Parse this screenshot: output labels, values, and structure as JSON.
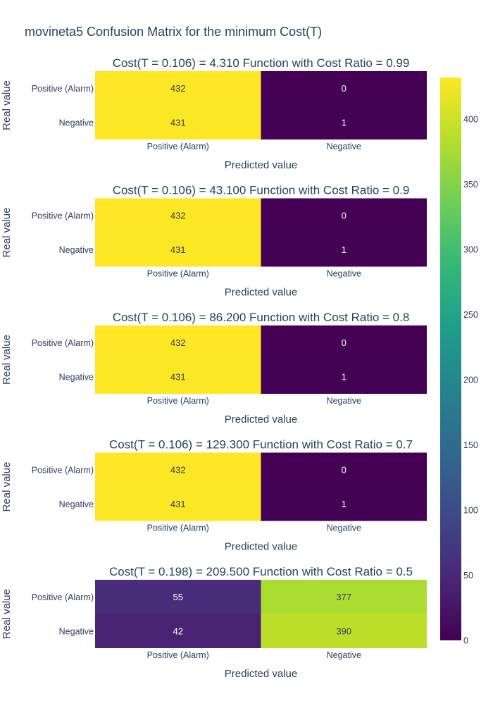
{
  "title": "movineta5 Confusion Matrix for the minimum Cost(T)",
  "colors": {
    "text": "#2a3f5f",
    "colorscale": [
      "#440154",
      "#482878",
      "#3e4989",
      "#31688e",
      "#26828e",
      "#1f9e89",
      "#35b779",
      "#6ece58",
      "#b5de2b",
      "#fde725"
    ]
  },
  "chart_data": [
    {
      "type": "heatmap",
      "title": "Cost(T = 0.106) = 4.310 Function with Cost Ratio = 0.99",
      "xlabel": "Predicted value",
      "ylabel": "Real value",
      "x": [
        "Positive (Alarm)",
        "Negative"
      ],
      "y": [
        "Positive (Alarm)",
        "Negative"
      ],
      "z": [
        [
          432,
          0
        ],
        [
          431,
          1
        ]
      ]
    },
    {
      "type": "heatmap",
      "title": "Cost(T = 0.106) = 43.100 Function with Cost Ratio = 0.9",
      "xlabel": "Predicted value",
      "ylabel": "Real value",
      "x": [
        "Positive (Alarm)",
        "Negative"
      ],
      "y": [
        "Positive (Alarm)",
        "Negative"
      ],
      "z": [
        [
          432,
          0
        ],
        [
          431,
          1
        ]
      ]
    },
    {
      "type": "heatmap",
      "title": "Cost(T = 0.106) = 86.200 Function with Cost Ratio = 0.8",
      "xlabel": "Predicted value",
      "ylabel": "Real value",
      "x": [
        "Positive (Alarm)",
        "Negative"
      ],
      "y": [
        "Positive (Alarm)",
        "Negative"
      ],
      "z": [
        [
          432,
          0
        ],
        [
          431,
          1
        ]
      ]
    },
    {
      "type": "heatmap",
      "title": "Cost(T = 0.106) = 129.300 Function with Cost Ratio = 0.7",
      "xlabel": "Predicted value",
      "ylabel": "Real value",
      "x": [
        "Positive (Alarm)",
        "Negative"
      ],
      "y": [
        "Positive (Alarm)",
        "Negative"
      ],
      "z": [
        [
          432,
          0
        ],
        [
          431,
          1
        ]
      ]
    },
    {
      "type": "heatmap",
      "title": "Cost(T = 0.198) = 209.500 Function with Cost Ratio = 0.5",
      "xlabel": "Predicted value",
      "ylabel": "Real value",
      "x": [
        "Positive (Alarm)",
        "Negative"
      ],
      "y": [
        "Positive (Alarm)",
        "Negative"
      ],
      "z": [
        [
          55,
          377
        ],
        [
          42,
          390
        ]
      ]
    }
  ],
  "colorbar": {
    "range": [
      0,
      432
    ],
    "ticks": [
      0,
      50,
      100,
      150,
      200,
      250,
      300,
      350,
      400
    ]
  }
}
